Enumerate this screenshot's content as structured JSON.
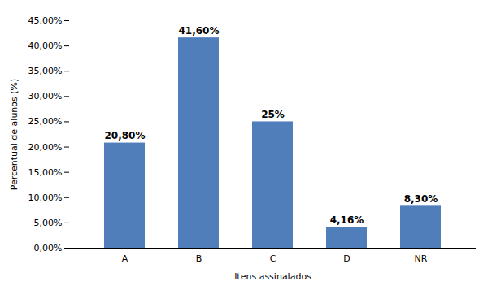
{
  "chart_data": {
    "type": "bar",
    "categories": [
      "A",
      "B",
      "C",
      "D",
      "NR"
    ],
    "values": [
      20.8,
      41.6,
      25.0,
      4.16,
      8.3
    ],
    "value_labels": [
      "20,80%",
      "41,60%",
      "25%",
      "4,16%",
      "8,30%"
    ],
    "data_labels": true,
    "color": "#4F7EBB",
    "xlabel": "Itens assinalados",
    "ylabel": "Percentual de alunos (%)",
    "ylim": [
      0,
      45
    ],
    "yticks": [
      {
        "value": 0,
        "label": "0,00%"
      },
      {
        "value": 5,
        "label": "5,00%"
      },
      {
        "value": 10,
        "label": "10,00%"
      },
      {
        "value": 15,
        "label": "15,00%"
      },
      {
        "value": 20,
        "label": "20,00%"
      },
      {
        "value": 25,
        "label": "25,00%"
      },
      {
        "value": 30,
        "label": "30,00%"
      },
      {
        "value": 35,
        "label": "35,00%"
      },
      {
        "value": 40,
        "label": "40,00%"
      },
      {
        "value": 45,
        "label": "45,00%"
      }
    ],
    "grid": false
  }
}
